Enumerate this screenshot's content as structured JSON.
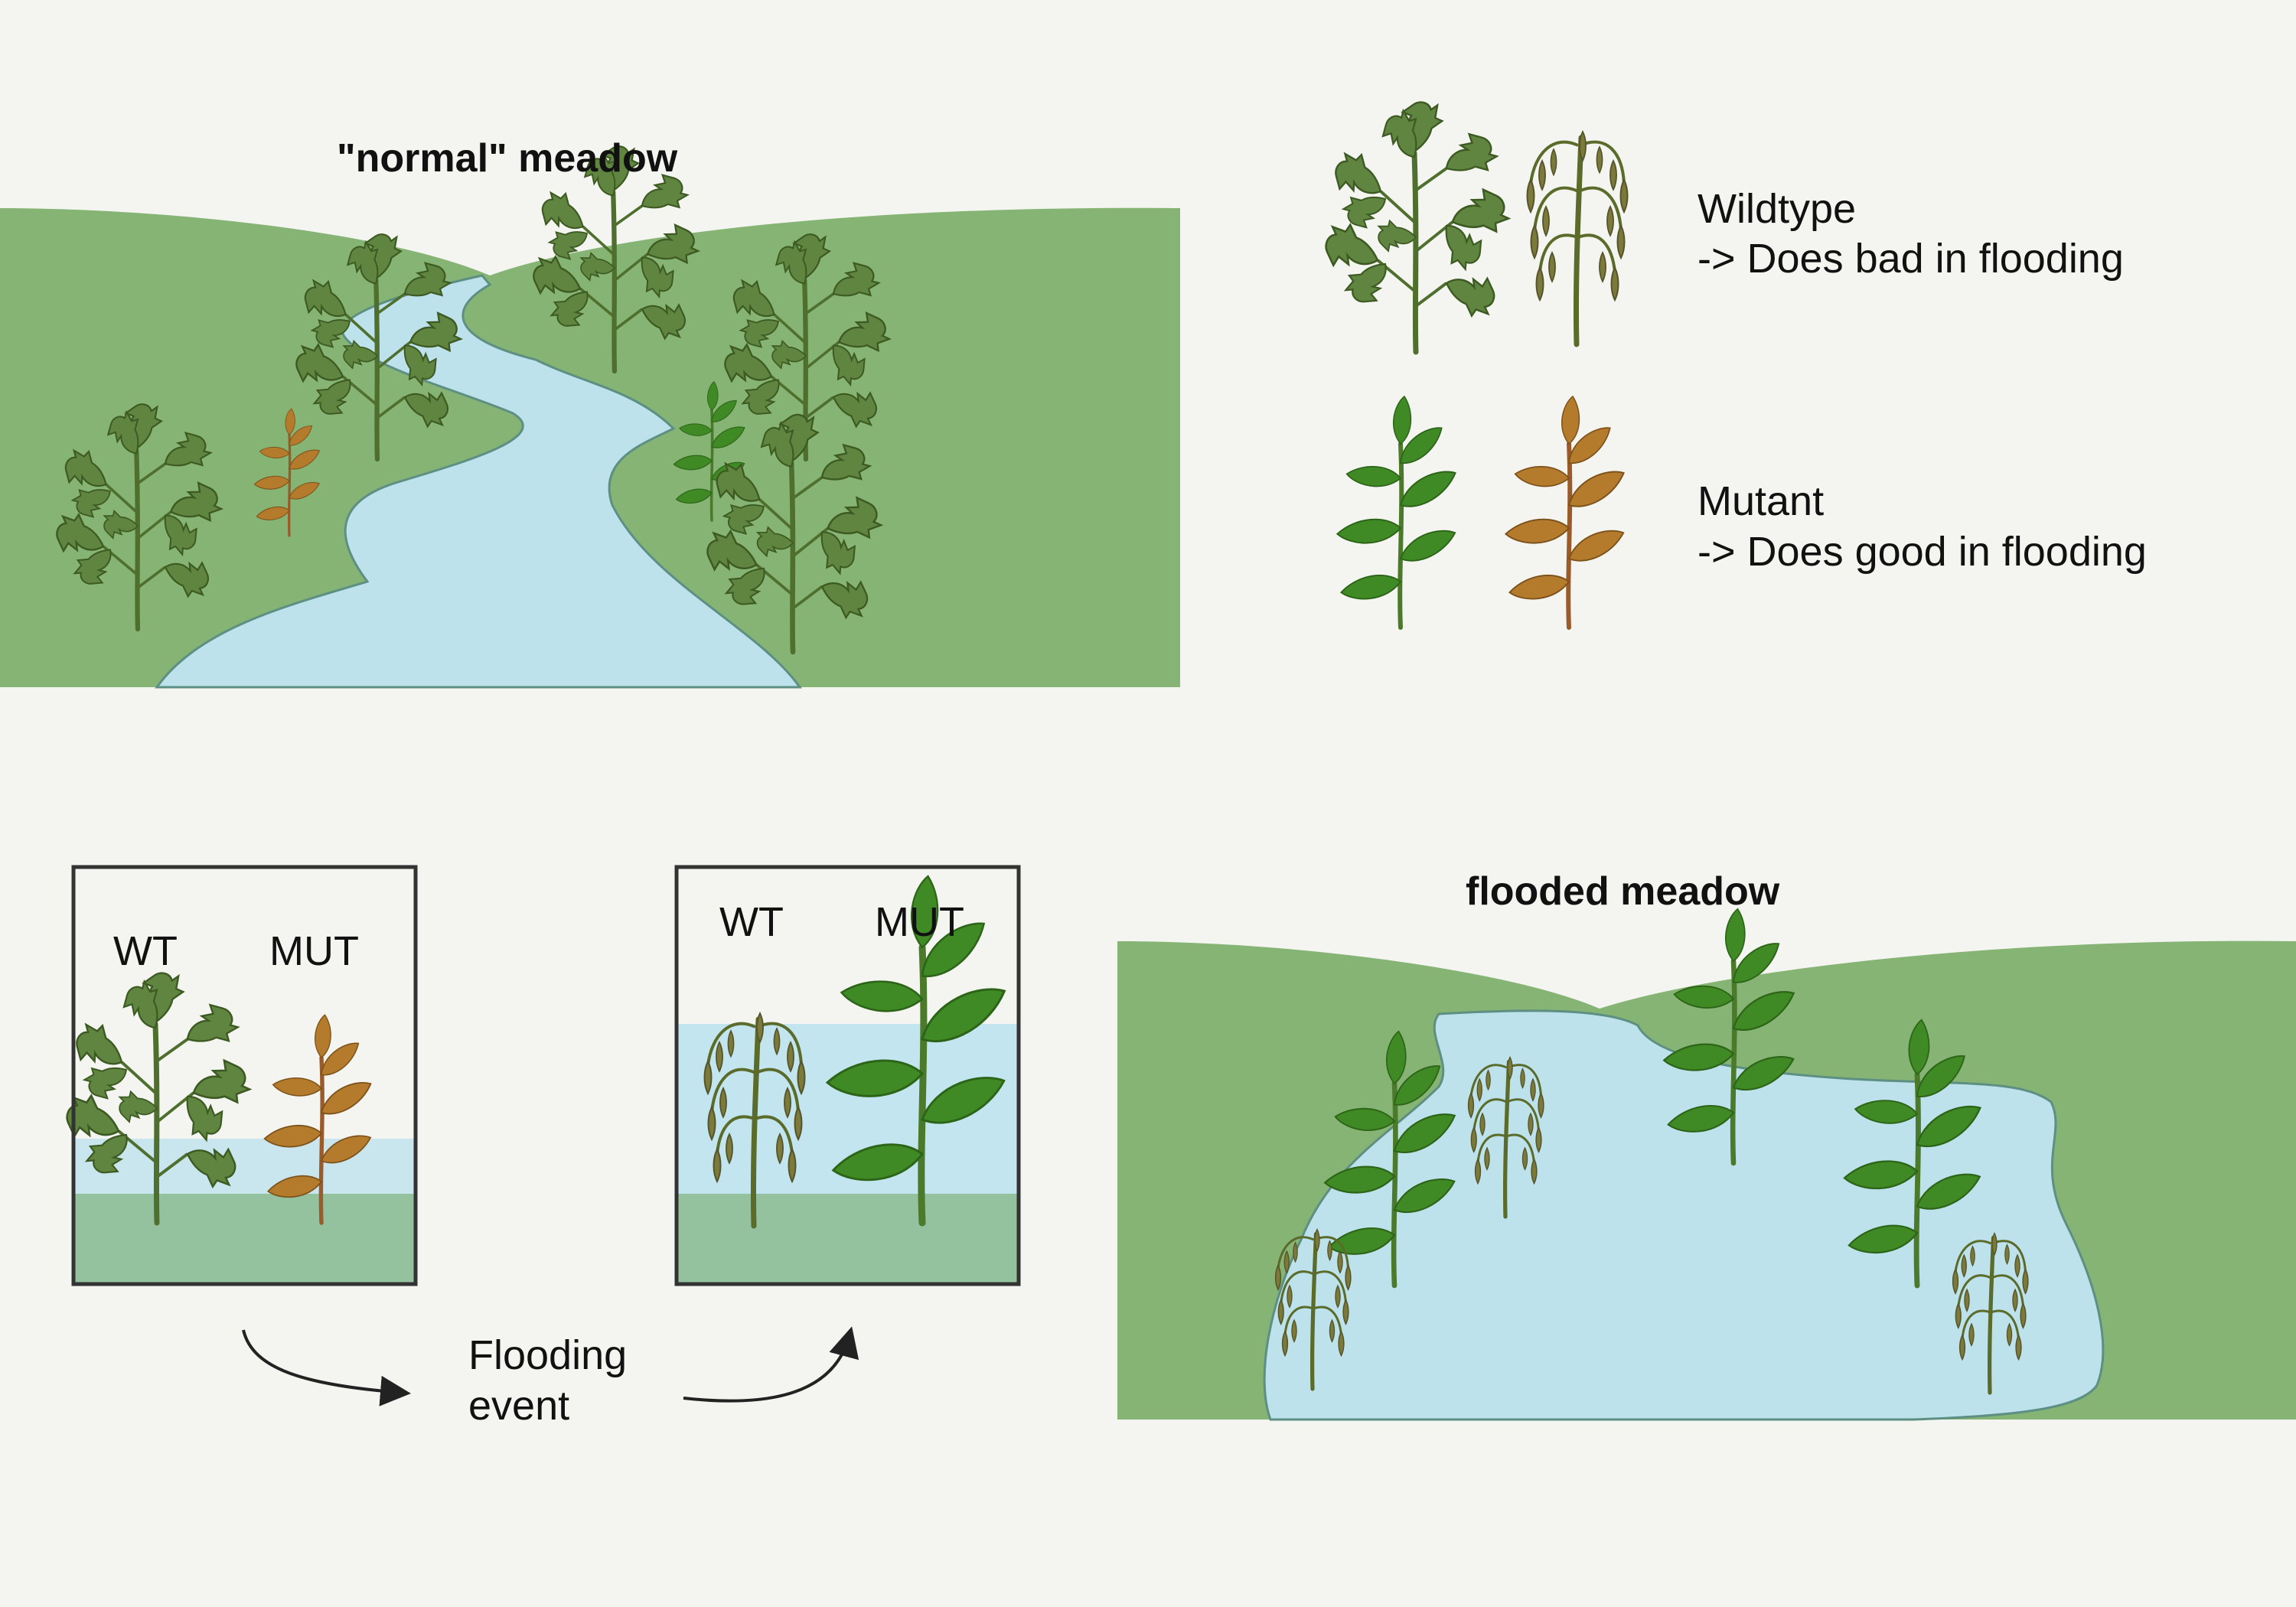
{
  "normal_meadow": {
    "title": "\"normal\" meadow"
  },
  "flooded_meadow": {
    "title": "flooded meadow"
  },
  "legend": {
    "wildtype": {
      "name": "Wildtype",
      "description": "-> Does bad in flooding"
    },
    "mutant": {
      "name": "Mutant",
      "description": "-> Does good in flooding"
    }
  },
  "experiment": {
    "before": {
      "wt_label": "WT",
      "mut_label": "MUT"
    },
    "after": {
      "wt_label": "WT",
      "mut_label": "MUT"
    },
    "event_label_line1": "Flooding",
    "event_label_line2": "event"
  },
  "colors": {
    "background": "#f4f5f1",
    "meadow_green": "#86b474",
    "meadow_edge": "#6f9b5e",
    "water": "#bde2ec",
    "water_edge": "#5d8f83",
    "soil": "#94c29e",
    "wildtype_plant": "#5a7f3a",
    "mutant_plant": "#3f8a24",
    "mutant_dry_plant": "#b57b2c",
    "drooping_plant": "#7a7a38",
    "box_border": "#333333",
    "arrow": "#222222"
  },
  "icons": [
    "tomato-plant-icon",
    "wilted-tomato-plant-icon",
    "green-leafy-plant-icon",
    "brown-leafy-plant-icon",
    "curved-arrow-icon"
  ]
}
